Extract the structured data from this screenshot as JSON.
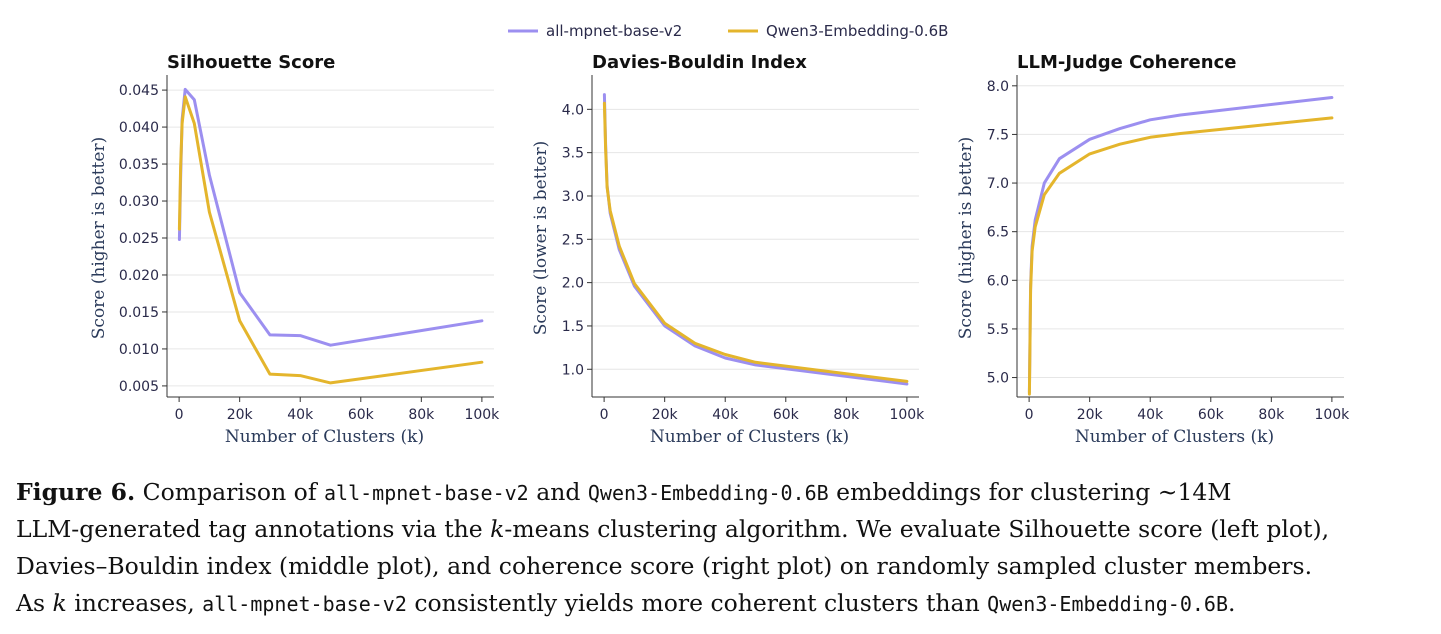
{
  "legend": [
    "all-mpnet-base-v2",
    "Qwen3-Embedding-0.6B"
  ],
  "colors": {
    "series1": "#9c8ff0",
    "series2": "#e4b52c"
  },
  "chart_data": [
    {
      "type": "line",
      "title": "Silhouette Score",
      "xlabel": "Number of Clusters (k)",
      "ylabel": "Score (higher is better)",
      "xlim": [
        -4000,
        104000
      ],
      "ylim": [
        0.0035,
        0.0465
      ],
      "xticks": [
        0,
        20000,
        40000,
        60000,
        80000,
        100000
      ],
      "xtick_labels": [
        "0",
        "20k",
        "40k",
        "60k",
        "80k",
        "100k"
      ],
      "yticks": [
        0.005,
        0.01,
        0.015,
        0.02,
        0.025,
        0.03,
        0.035,
        0.04,
        0.045
      ],
      "ytick_labels": [
        "0.005",
        "0.010",
        "0.015",
        "0.020",
        "0.025",
        "0.030",
        "0.035",
        "0.040",
        "0.045"
      ],
      "grid": "horizontal",
      "series": [
        {
          "name": "all-mpnet-base-v2",
          "x": [
            100,
            500,
            1000,
            2000,
            5000,
            10000,
            20000,
            30000,
            40000,
            50000,
            100000
          ],
          "y": [
            0.0248,
            0.033,
            0.041,
            0.0451,
            0.0437,
            0.0335,
            0.0176,
            0.0119,
            0.0118,
            0.0105,
            0.0138
          ]
        },
        {
          "name": "Qwen3-Embedding-0.6B",
          "x": [
            100,
            500,
            1000,
            2000,
            5000,
            10000,
            20000,
            30000,
            40000,
            50000,
            100000
          ],
          "y": [
            0.0262,
            0.0345,
            0.0405,
            0.0441,
            0.0405,
            0.0285,
            0.0138,
            0.0066,
            0.0064,
            0.0054,
            0.0082
          ]
        }
      ]
    },
    {
      "type": "line",
      "title": "Davies-Bouldin Index",
      "xlabel": "Number of Clusters (k)",
      "ylabel": "Score (lower is better)",
      "xlim": [
        -4000,
        104000
      ],
      "ylim": [
        0.68,
        4.35
      ],
      "xticks": [
        0,
        20000,
        40000,
        60000,
        80000,
        100000
      ],
      "xtick_labels": [
        "0",
        "20k",
        "40k",
        "60k",
        "80k",
        "100k"
      ],
      "yticks": [
        1.0,
        1.5,
        2.0,
        2.5,
        3.0,
        3.5,
        4.0
      ],
      "ytick_labels": [
        "1.0",
        "1.5",
        "2.0",
        "2.5",
        "3.0",
        "3.5",
        "4.0"
      ],
      "grid": "horizontal",
      "series": [
        {
          "name": "all-mpnet-base-v2",
          "x": [
            100,
            500,
            1000,
            2000,
            5000,
            10000,
            20000,
            30000,
            40000,
            50000,
            100000
          ],
          "y": [
            4.17,
            3.6,
            3.12,
            2.8,
            2.38,
            1.96,
            1.5,
            1.27,
            1.13,
            1.05,
            0.83
          ]
        },
        {
          "name": "Qwen3-Embedding-0.6B",
          "x": [
            100,
            500,
            1000,
            2000,
            5000,
            10000,
            20000,
            30000,
            40000,
            50000,
            100000
          ],
          "y": [
            4.07,
            3.55,
            3.1,
            2.83,
            2.42,
            1.99,
            1.53,
            1.3,
            1.17,
            1.08,
            0.86
          ]
        }
      ]
    },
    {
      "type": "line",
      "title": "LLM-Judge Coherence",
      "xlabel": "Number of Clusters (k)",
      "ylabel": "Score (higher is better)",
      "xlim": [
        -4000,
        104000
      ],
      "ylim": [
        4.8,
        8.07
      ],
      "xticks": [
        0,
        20000,
        40000,
        60000,
        80000,
        100000
      ],
      "xtick_labels": [
        "0",
        "20k",
        "40k",
        "60k",
        "80k",
        "100k"
      ],
      "yticks": [
        5.0,
        5.5,
        6.0,
        6.5,
        7.0,
        7.5,
        8.0
      ],
      "ytick_labels": [
        "5.0",
        "5.5",
        "6.0",
        "6.5",
        "7.0",
        "7.5",
        "8.0"
      ],
      "grid": "horizontal",
      "series": [
        {
          "name": "all-mpnet-base-v2",
          "x": [
            100,
            500,
            1000,
            2000,
            5000,
            10000,
            20000,
            30000,
            40000,
            50000,
            100000
          ],
          "y": [
            4.85,
            5.95,
            6.35,
            6.62,
            7.0,
            7.25,
            7.45,
            7.56,
            7.65,
            7.7,
            7.88
          ]
        },
        {
          "name": "Qwen3-Embedding-0.6B",
          "x": [
            100,
            500,
            1000,
            2000,
            5000,
            10000,
            20000,
            30000,
            40000,
            50000,
            100000
          ],
          "y": [
            4.83,
            5.9,
            6.3,
            6.55,
            6.88,
            7.1,
            7.3,
            7.4,
            7.47,
            7.51,
            7.67
          ]
        }
      ]
    }
  ],
  "caption": {
    "line1": [
      {
        "t": "Figure 6.",
        "s": "fig-label"
      },
      {
        "t": "  Comparison of ",
        "s": ""
      },
      {
        "t": "all-mpnet-base-v2",
        "s": "mono"
      },
      {
        "t": " and ",
        "s": ""
      },
      {
        "t": "Qwen3-Embedding-0.6B",
        "s": "mono"
      },
      {
        "t": " embeddings for clustering ∼14M",
        "s": ""
      }
    ],
    "line2": [
      {
        "t": "LLM-generated tag annotations via the ",
        "s": ""
      },
      {
        "t": "k",
        "s": "ital"
      },
      {
        "t": "-means clustering algorithm. We evaluate Silhouette score (left plot),",
        "s": ""
      }
    ],
    "line3": [
      {
        "t": "Davies–Bouldin index (middle plot), and coherence score (right plot) on randomly sampled cluster members.",
        "s": ""
      }
    ],
    "line4": [
      {
        "t": "As ",
        "s": ""
      },
      {
        "t": "k",
        "s": "ital"
      },
      {
        "t": " increases, ",
        "s": ""
      },
      {
        "t": "all-mpnet-base-v2",
        "s": "mono"
      },
      {
        "t": " consistently yields more coherent clusters than ",
        "s": ""
      },
      {
        "t": "Qwen3-Embedding-0.6B",
        "s": "mono"
      },
      {
        "t": ".",
        "s": ""
      }
    ]
  }
}
